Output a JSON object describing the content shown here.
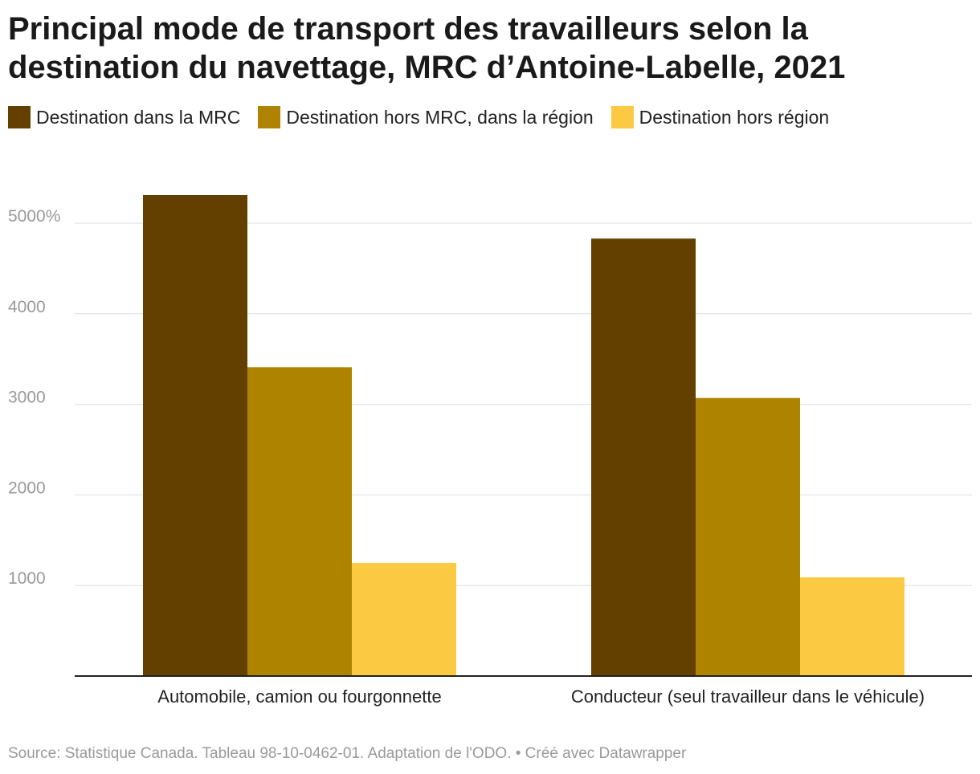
{
  "title": "Principal mode de transport des travailleurs selon la destination du navettage, MRC d’Antoine-Labelle, 2021",
  "colors": {
    "s0": "#634000",
    "s1": "#ae8300",
    "s2": "#fcc943",
    "grid": "#dddddd",
    "axis": "#222222",
    "tick": "#999999"
  },
  "chart_data": {
    "type": "bar",
    "title": "Principal mode de transport des travailleurs selon la destination du navettage, MRC d’Antoine-Labelle, 2021",
    "categories": [
      "Automobile, camion ou fourgonnette",
      "Conducteur (seul travailleur dans le véhicule)"
    ],
    "series": [
      {
        "name": "Destination dans la MRC",
        "values": [
          5310,
          4830
        ]
      },
      {
        "name": "Destination hors MRC, dans la région",
        "values": [
          3410,
          3070
        ]
      },
      {
        "name": "Destination hors région",
        "values": [
          1250,
          1090
        ]
      }
    ],
    "yticks": [
      1000,
      2000,
      3000,
      4000,
      5000
    ],
    "ytick_labels": [
      "1000",
      "2000",
      "3000",
      "4000",
      "5000%"
    ],
    "ylim": [
      0,
      5310
    ],
    "xlabel": "",
    "ylabel": "",
    "legend": "top-left",
    "grid": true
  },
  "source": "Source: Statistique Canada. Tableau 98-10-0462-01. Adaptation de l'ODO. • Créé avec Datawrapper"
}
